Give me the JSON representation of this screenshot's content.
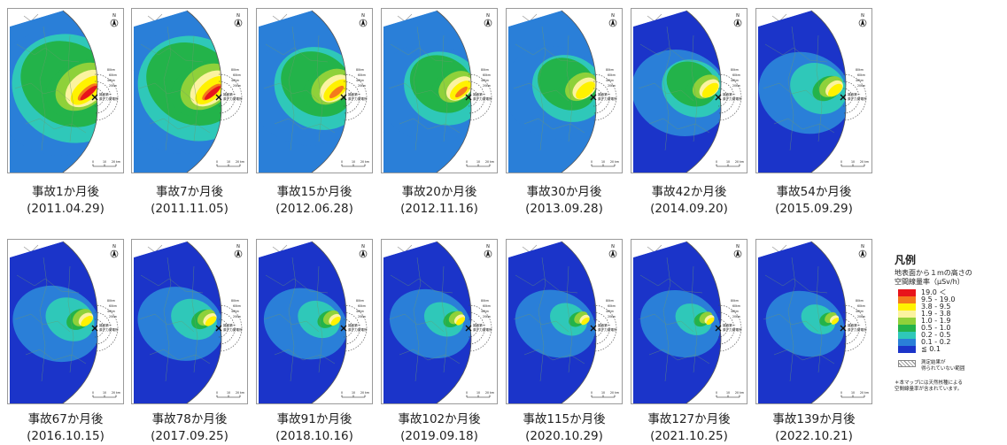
{
  "compass_label": "N",
  "plant_name_lines": [
    "福島第一",
    "原子力発電所"
  ],
  "ring_labels": [
    "80km",
    "60km",
    "40km",
    "20km"
  ],
  "scalebar_ticks": [
    "0",
    "10",
    "20 km"
  ],
  "panels": [
    {
      "title": "事故1か月後",
      "date": "(2011.04.29)",
      "level": 1.0
    },
    {
      "title": "事故7か月後",
      "date": "(2011.11.05)",
      "level": 0.96
    },
    {
      "title": "事故15か月後",
      "date": "(2012.06.28)",
      "level": 0.72
    },
    {
      "title": "事故20か月後",
      "date": "(2012.11.16)",
      "level": 0.62
    },
    {
      "title": "事故30か月後",
      "date": "(2013.09.28)",
      "level": 0.55
    },
    {
      "title": "事故42か月後",
      "date": "(2014.09.20)",
      "level": 0.45
    },
    {
      "title": "事故54か月後",
      "date": "(2015.09.29)",
      "level": 0.38
    },
    {
      "title": "事故67か月後",
      "date": "(2016.10.15)",
      "level": 0.3
    },
    {
      "title": "事故78か月後",
      "date": "(2017.09.25)",
      "level": 0.27
    },
    {
      "title": "事故91か月後",
      "date": "(2018.10.16)",
      "level": 0.23
    },
    {
      "title": "事故102か月後",
      "date": "(2019.09.18)",
      "level": 0.2
    },
    {
      "title": "事故115か月後",
      "date": "(2020.10.29)",
      "level": 0.18
    },
    {
      "title": "事故127か月後",
      "date": "(2021.10.25)",
      "level": 0.17
    },
    {
      "title": "事故139か月後",
      "date": "(2022.10.21)",
      "level": 0.15
    }
  ],
  "legend": {
    "title": "凡例",
    "heading_line1": "地表面から１mの高さの",
    "heading_line2": "空間線量率（μSv/h）",
    "items": [
      {
        "label": "19.0 ＜",
        "color": "#e8141b"
      },
      {
        "label": "9.5 - 19.0",
        "color": "#f47a1c"
      },
      {
        "label": "3.8 - 9.5",
        "color": "#fff200"
      },
      {
        "label": "1.9 - 3.8",
        "color": "#fbf3a0"
      },
      {
        "label": "1.0 - 1.9",
        "color": "#8fd13a"
      },
      {
        "label": "0.5 - 1.0",
        "color": "#23b34a"
      },
      {
        "label": "0.2 - 0.5",
        "color": "#2fc8b9"
      },
      {
        "label": "0.1 - 0.2",
        "color": "#2a7fd8"
      },
      {
        "label": "≦ 0.1",
        "color": "#1b34c9"
      }
    ],
    "hatch_label_line1": "測定結果が",
    "hatch_label_line2": "得られていない範囲",
    "note_line1": "＊本マップには天然核種による",
    "note_line2": "空間線量率が含まれています。"
  }
}
